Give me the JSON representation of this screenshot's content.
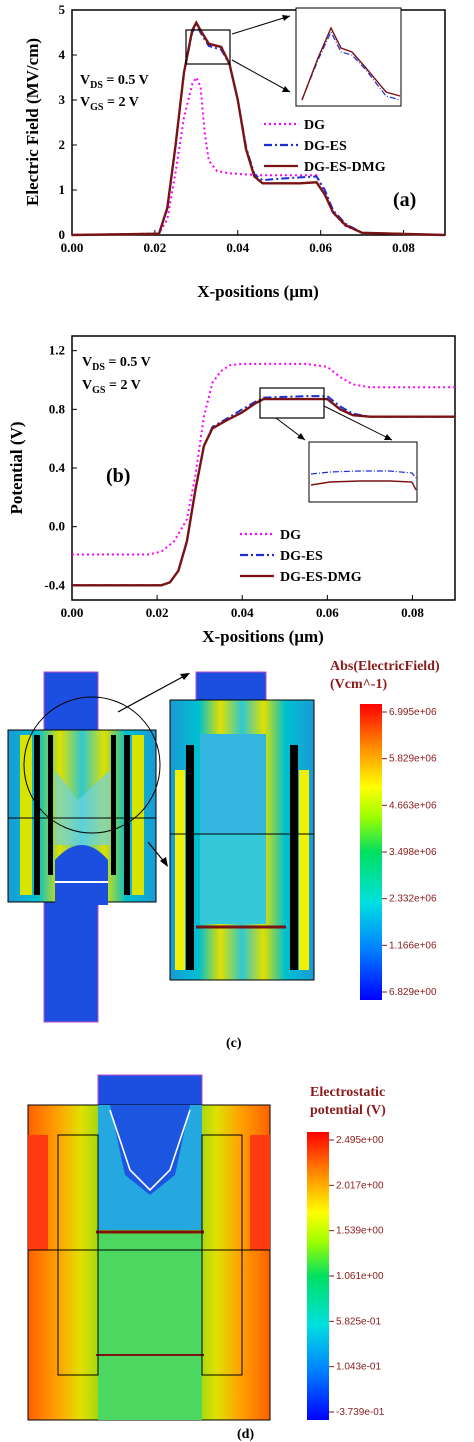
{
  "chart_data": [
    {
      "type": "line",
      "panel_label": "(a)",
      "ylabel": "Electric Field (MV/cm)",
      "xlabel": "X-positions (μm)",
      "xlim": [
        0,
        0.09
      ],
      "ylim": [
        0,
        5
      ],
      "x_ticks": [
        "0.00",
        "0.02",
        "0.04",
        "0.06",
        "0.08"
      ],
      "y_ticks": [
        "0",
        "1",
        "2",
        "3",
        "4",
        "5"
      ],
      "conditions": [
        "V_DS = 0.5 V",
        "V_GS = 2 V"
      ],
      "series": [
        {
          "name": "DG",
          "color": "#ff00ff",
          "style": "dotted",
          "x": [
            0,
            0.021,
            0.023,
            0.025,
            0.027,
            0.029,
            0.03,
            0.031,
            0.032,
            0.033,
            0.035,
            0.038,
            0.045,
            0.055,
            0.059,
            0.061,
            0.063,
            0.066,
            0.07,
            0.09
          ],
          "y": [
            0,
            0.03,
            0.35,
            1.4,
            2.6,
            3.35,
            3.5,
            3.3,
            2.3,
            1.65,
            1.42,
            1.37,
            1.33,
            1.33,
            1.33,
            0.95,
            0.5,
            0.2,
            0.05,
            0
          ]
        },
        {
          "name": "DG-ES",
          "color": "#1c2fd6",
          "style": "dashdot",
          "x": [
            0,
            0.021,
            0.023,
            0.025,
            0.027,
            0.029,
            0.03,
            0.031,
            0.033,
            0.036,
            0.038,
            0.04,
            0.042,
            0.044,
            0.046,
            0.05,
            0.055,
            0.059,
            0.061,
            0.063,
            0.066,
            0.07,
            0.09
          ],
          "y": [
            0,
            0.03,
            0.6,
            2.0,
            3.6,
            4.5,
            4.67,
            4.5,
            4.2,
            4.12,
            3.8,
            3.0,
            1.95,
            1.35,
            1.22,
            1.25,
            1.28,
            1.3,
            1.0,
            0.55,
            0.25,
            0.05,
            0
          ]
        },
        {
          "name": "DG-ES-DMG",
          "color": "#7a1313",
          "style": "solid",
          "x": [
            0,
            0.021,
            0.023,
            0.025,
            0.027,
            0.029,
            0.03,
            0.031,
            0.033,
            0.036,
            0.038,
            0.04,
            0.042,
            0.044,
            0.046,
            0.05,
            0.055,
            0.059,
            0.061,
            0.063,
            0.066,
            0.07,
            0.09
          ],
          "y": [
            0,
            0.03,
            0.6,
            2.0,
            3.6,
            4.55,
            4.72,
            4.55,
            4.25,
            4.18,
            3.8,
            3.0,
            1.9,
            1.3,
            1.15,
            1.15,
            1.15,
            1.17,
            0.9,
            0.5,
            0.22,
            0.05,
            0
          ]
        }
      ]
    },
    {
      "type": "line",
      "panel_label": "(b)",
      "ylabel": "Potential (V)",
      "xlabel": "X-positions (μm)",
      "xlim": [
        0,
        0.09
      ],
      "ylim": [
        -0.5,
        1.3
      ],
      "x_ticks": [
        "0.00",
        "0.02",
        "0.04",
        "0.06",
        "0.08"
      ],
      "y_ticks": [
        "-0.4",
        "0.0",
        "0.4",
        "0.8",
        "1.2"
      ],
      "conditions": [
        "V_DS = 0.5 V",
        "V_GS = 2 V"
      ],
      "series": [
        {
          "name": "DG",
          "color": "#ff00ff",
          "style": "dotted",
          "x": [
            0,
            0.018,
            0.021,
            0.024,
            0.027,
            0.029,
            0.031,
            0.033,
            0.035,
            0.037,
            0.04,
            0.055,
            0.06,
            0.063,
            0.066,
            0.07,
            0.09
          ],
          "y": [
            -0.19,
            -0.19,
            -0.17,
            -0.1,
            0.05,
            0.35,
            0.75,
            0.98,
            1.06,
            1.1,
            1.11,
            1.11,
            1.09,
            1.02,
            0.97,
            0.95,
            0.95
          ]
        },
        {
          "name": "DG-ES",
          "color": "#1c2fd6",
          "style": "dashdot",
          "x": [
            0,
            0.021,
            0.023,
            0.025,
            0.027,
            0.029,
            0.031,
            0.033,
            0.036,
            0.04,
            0.043,
            0.045,
            0.055,
            0.06,
            0.063,
            0.066,
            0.07,
            0.09
          ],
          "y": [
            -0.4,
            -0.4,
            -0.38,
            -0.3,
            -0.1,
            0.25,
            0.55,
            0.68,
            0.73,
            0.8,
            0.85,
            0.88,
            0.89,
            0.89,
            0.82,
            0.77,
            0.75,
            0.75
          ]
        },
        {
          "name": "DG-ES-DMG",
          "color": "#7a1313",
          "style": "solid",
          "x": [
            0,
            0.021,
            0.023,
            0.025,
            0.027,
            0.029,
            0.031,
            0.033,
            0.036,
            0.04,
            0.043,
            0.045,
            0.055,
            0.06,
            0.063,
            0.066,
            0.07,
            0.09
          ],
          "y": [
            -0.4,
            -0.4,
            -0.38,
            -0.3,
            -0.1,
            0.25,
            0.55,
            0.67,
            0.72,
            0.78,
            0.84,
            0.87,
            0.87,
            0.87,
            0.8,
            0.76,
            0.75,
            0.75
          ]
        }
      ]
    },
    {
      "type": "heatmap",
      "panel_label": "(c)",
      "colorbar_title": [
        "Abs(ElectricField)",
        "(Vcm^-1)"
      ],
      "colorbar_ticks": [
        "6.995e+06",
        "5.829e+06",
        "4.663e+06",
        "3.498e+06",
        "2.332e+06",
        "1.166e+06",
        "6.829e+00"
      ]
    },
    {
      "type": "heatmap",
      "panel_label": "(d)",
      "colorbar_title": [
        "Electrostatic",
        "potential (V)"
      ],
      "colorbar_ticks": [
        "2.495e+00",
        "2.017e+00",
        "1.539e+00",
        "1.061e+00",
        "5.825e-01",
        "1.043e-01",
        "-3.739e-01"
      ]
    }
  ]
}
